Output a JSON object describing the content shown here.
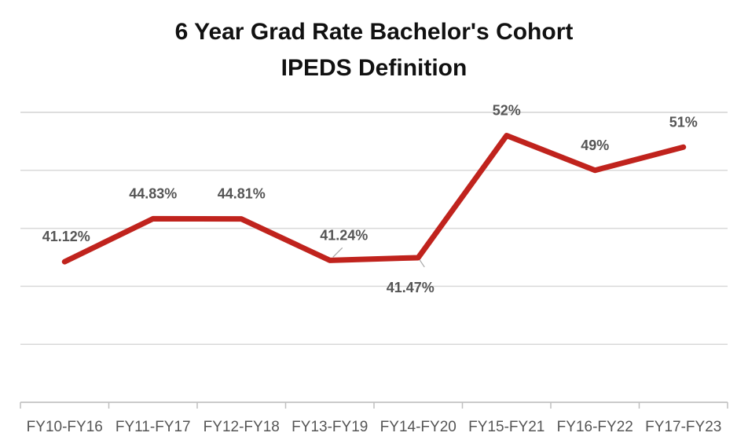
{
  "chart_data": {
    "type": "line",
    "title": "6 Year Grad Rate Bachelor's Cohort",
    "subtitle": "IPEDS Definition",
    "xlabel": "",
    "ylabel": "",
    "categories": [
      "FY10-FY16",
      "FY11-FY17",
      "FY12-FY18",
      "FY13-FY19",
      "FY14-FY20",
      "FY15-FY21",
      "FY16-FY22",
      "FY17-FY23"
    ],
    "series": [
      {
        "values": [
          41.12,
          44.83,
          44.81,
          41.24,
          41.47,
          52,
          49,
          51
        ],
        "labels": [
          "41.12%",
          "44.83%",
          "44.81%",
          "41.24%",
          "41.47%",
          "52%",
          "49%",
          "51%"
        ],
        "color": "#c0231d"
      }
    ],
    "ylim": [
      29,
      54
    ],
    "grid": true,
    "legend": "none"
  }
}
